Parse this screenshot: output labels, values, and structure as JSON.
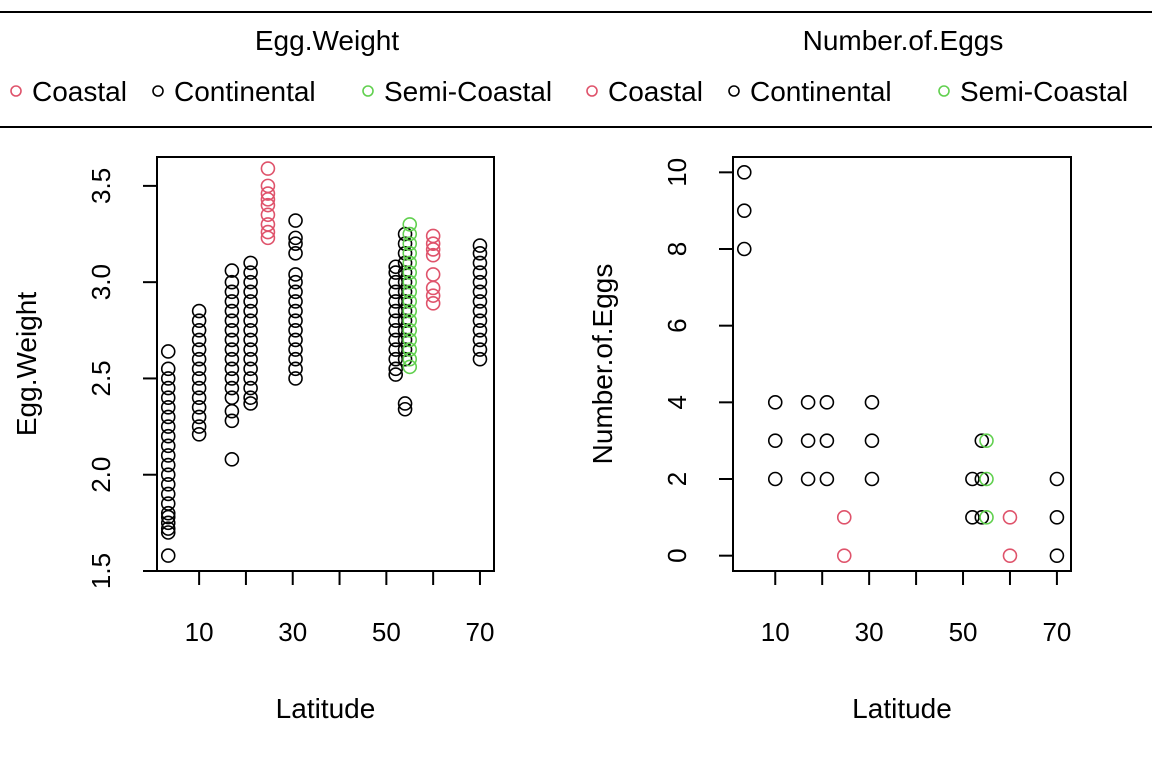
{
  "colors": {
    "Coastal": "#DF536B",
    "Continental": "#000000",
    "Semi-Coastal": "#61D04F"
  },
  "legends": [
    {
      "title": "Egg.Weight",
      "entries": [
        "Coastal",
        "Continental",
        "Semi-Coastal"
      ]
    },
    {
      "title": "Number.of.Eggs",
      "entries": [
        "Coastal",
        "Continental",
        "Semi-Coastal"
      ]
    }
  ],
  "chart_data": [
    {
      "type": "scatter",
      "xlabel": "Latitude",
      "ylabel": "Egg.Weight",
      "xlim": [
        1,
        73
      ],
      "ylim": [
        1.5,
        3.65
      ],
      "xticks": [
        10,
        20,
        30,
        40,
        50,
        60,
        70
      ],
      "xtick_labels": [
        "10",
        "30",
        "50",
        "70"
      ],
      "yticks": [
        "1.5",
        "2.0",
        "2.5",
        "3.0",
        "3.5"
      ],
      "grid": false,
      "legend": "top",
      "series": [
        {
          "group": "Continental",
          "lat": 3.4,
          "values": [
            1.58,
            1.7,
            1.72,
            1.75,
            1.78,
            1.8,
            1.85,
            1.9,
            1.95,
            2.0,
            2.05,
            2.1,
            2.15,
            2.2,
            2.25,
            2.3,
            2.35,
            2.4,
            2.45,
            2.5,
            2.55,
            2.64
          ]
        },
        {
          "group": "Continental",
          "lat": 10,
          "values": [
            2.21,
            2.25,
            2.3,
            2.35,
            2.4,
            2.45,
            2.5,
            2.55,
            2.6,
            2.65,
            2.7,
            2.75,
            2.8,
            2.85
          ]
        },
        {
          "group": "Continental",
          "lat": 17,
          "values": [
            2.08,
            2.28,
            2.33,
            2.4,
            2.45,
            2.5,
            2.55,
            2.6,
            2.65,
            2.7,
            2.75,
            2.8,
            2.85,
            2.9,
            2.95,
            3.0,
            3.06
          ]
        },
        {
          "group": "Continental",
          "lat": 21,
          "values": [
            2.37,
            2.4,
            2.45,
            2.5,
            2.55,
            2.6,
            2.65,
            2.7,
            2.75,
            2.8,
            2.85,
            2.9,
            2.95,
            3.0,
            3.05,
            3.1
          ]
        },
        {
          "group": "Coastal",
          "lat": 24.7,
          "values": [
            3.23,
            3.26,
            3.3,
            3.35,
            3.4,
            3.43,
            3.46,
            3.5,
            3.59
          ]
        },
        {
          "group": "Continental",
          "lat": 30.6,
          "values": [
            2.5,
            2.55,
            2.6,
            2.65,
            2.7,
            2.75,
            2.8,
            2.85,
            2.9,
            2.95,
            3.0,
            3.04,
            3.15,
            3.2,
            3.23,
            3.32
          ]
        },
        {
          "group": "Continental",
          "lat": 52,
          "values": [
            2.52,
            2.55,
            2.6,
            2.65,
            2.7,
            2.75,
            2.8,
            2.85,
            2.9,
            2.95,
            3.0,
            3.05,
            3.08
          ]
        },
        {
          "group": "Continental",
          "lat": 54,
          "values": [
            2.34,
            2.37,
            2.6,
            2.65,
            2.7,
            2.75,
            2.8,
            2.85,
            2.9,
            2.95,
            3.0,
            3.05,
            3.1,
            3.15,
            3.2,
            3.25
          ]
        },
        {
          "group": "Semi-Coastal",
          "lat": 55,
          "values": [
            2.56,
            2.6,
            2.65,
            2.7,
            2.75,
            2.8,
            2.85,
            2.9,
            2.95,
            3.0,
            3.05,
            3.1,
            3.15,
            3.2,
            3.25,
            3.3
          ]
        },
        {
          "group": "Coastal",
          "lat": 60,
          "values": [
            2.89,
            2.93,
            2.97,
            3.04,
            3.14,
            3.17,
            3.2,
            3.24
          ]
        },
        {
          "group": "Continental",
          "lat": 70,
          "values": [
            2.6,
            2.65,
            2.7,
            2.75,
            2.8,
            2.85,
            2.9,
            2.95,
            3.0,
            3.05,
            3.1,
            3.15,
            3.19
          ]
        }
      ]
    },
    {
      "type": "scatter",
      "xlabel": "Latitude",
      "ylabel": "Number.of.Eggs",
      "xlim": [
        1,
        73
      ],
      "ylim": [
        -0.4,
        10.4
      ],
      "xticks": [
        10,
        20,
        30,
        40,
        50,
        60,
        70
      ],
      "xtick_labels": [
        "10",
        "30",
        "50",
        "70"
      ],
      "yticks": [
        "0",
        "2",
        "4",
        "6",
        "8",
        "10"
      ],
      "grid": false,
      "legend": "top",
      "series": [
        {
          "group": "Continental",
          "lat": 3.4,
          "values": [
            8,
            9,
            10
          ]
        },
        {
          "group": "Continental",
          "lat": 10,
          "values": [
            2,
            3,
            4
          ]
        },
        {
          "group": "Continental",
          "lat": 17,
          "values": [
            2,
            3,
            4
          ]
        },
        {
          "group": "Continental",
          "lat": 21,
          "values": [
            2,
            3,
            4
          ]
        },
        {
          "group": "Coastal",
          "lat": 24.7,
          "values": [
            0,
            1
          ]
        },
        {
          "group": "Continental",
          "lat": 30.6,
          "values": [
            2,
            3,
            4
          ]
        },
        {
          "group": "Continental",
          "lat": 52,
          "values": [
            1,
            2
          ]
        },
        {
          "group": "Continental",
          "lat": 54,
          "values": [
            1,
            2,
            3
          ]
        },
        {
          "group": "Semi-Coastal",
          "lat": 55,
          "values": [
            1,
            2,
            3
          ]
        },
        {
          "group": "Coastal",
          "lat": 60,
          "values": [
            0,
            1
          ]
        },
        {
          "group": "Continental",
          "lat": 70,
          "values": [
            0,
            1,
            2
          ]
        }
      ]
    }
  ]
}
